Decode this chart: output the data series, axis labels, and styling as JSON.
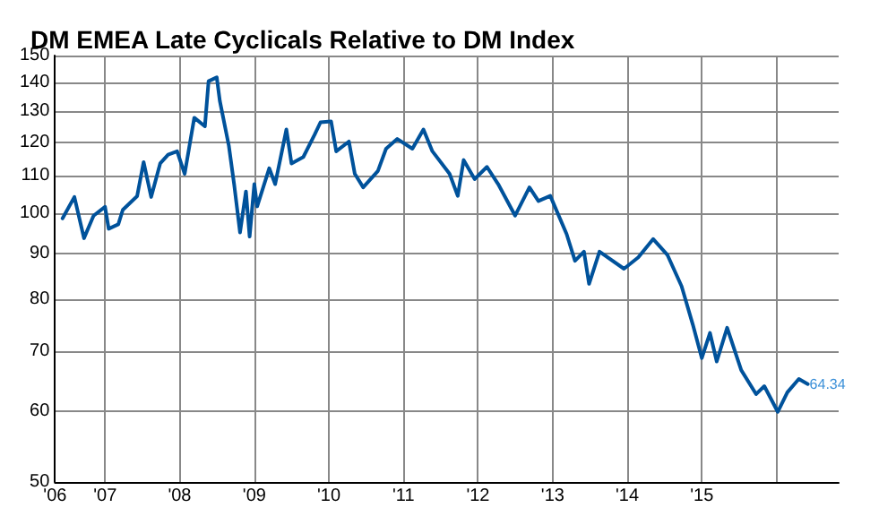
{
  "chart_data": {
    "type": "line",
    "title": "DM EMEA Late Cyclicals Relative to DM Index",
    "log": "y",
    "grid": true,
    "marker": "none",
    "line_style": "solid",
    "xlim": [
      "2006-05",
      "2016-11"
    ],
    "xticks": [
      {
        "value": "2006-05",
        "label": "'06"
      },
      {
        "value": "2007",
        "label": "'07"
      },
      {
        "value": "2008",
        "label": "'08"
      },
      {
        "value": "2009",
        "label": "'09"
      },
      {
        "value": "2010",
        "label": "'10"
      },
      {
        "value": "2011",
        "label": "'11"
      },
      {
        "value": "2012",
        "label": "'12"
      },
      {
        "value": "2013",
        "label": "'13"
      },
      {
        "value": "2014",
        "label": "'14"
      },
      {
        "value": "2015",
        "label": "'15"
      },
      {
        "value": "2016",
        "label": null
      }
    ],
    "ylim": [
      50,
      150
    ],
    "yticks": [
      50,
      60,
      70,
      80,
      90,
      100,
      110,
      120,
      130,
      140,
      150
    ],
    "series": [
      {
        "color": "#00529b",
        "x": [
          "2006-06-07",
          "2006-08-04",
          "2006-09-20",
          "2006-11-06",
          "2007-01-01",
          "2007-01-19",
          "2007-03-07",
          "2007-03-29",
          "2007-06-07",
          "2007-07-09",
          "2007-08-15",
          "2007-09-28",
          "2007-11-06",
          "2007-12-20",
          "2008-01-26",
          "2008-03-13",
          "2008-05-04",
          "2008-05-22",
          "2008-07-01",
          "2008-07-16",
          "2008-08-29",
          "2008-09-24",
          "2008-10-23",
          "2008-11-21",
          "2008-12-09",
          "2009-01-01",
          "2009-01-15",
          "2009-03-15",
          "2009-04-13",
          "2009-06-07",
          "2009-07-02",
          "2009-08-29",
          "2009-10-23",
          "2009-11-21",
          "2010-01-12",
          "2010-02-06",
          "2010-04-09",
          "2010-05-08",
          "2010-06-18",
          "2010-08-29",
          "2010-10-08",
          "2010-12-02",
          "2011-02-14",
          "2011-04-09",
          "2011-05-23",
          "2011-08-15",
          "2011-09-24",
          "2011-10-23",
          "2011-12-16",
          "2012-02-14",
          "2012-04-09",
          "2012-07-01",
          "2012-09-09",
          "2012-10-23",
          "2012-12-20",
          "2013-03-10",
          "2013-04-20",
          "2013-06-03",
          "2013-06-28",
          "2013-08-18",
          "2013-12-16",
          "2014-02-24",
          "2014-05-08",
          "2014-07-16",
          "2014-09-24",
          "2014-11-18",
          "2015-01-01",
          "2015-02-10",
          "2015-03-15",
          "2015-05-05",
          "2015-07-13",
          "2015-09-24",
          "2015-11-03",
          "2016-01-08",
          "2016-02-24",
          "2016-04-20",
          "2016-06-03"
        ],
        "values": [
          98.6,
          104.2,
          93.7,
          99.3,
          101.6,
          96.0,
          97.1,
          100.8,
          104.4,
          114.0,
          104.2,
          113.6,
          116.2,
          117.2,
          110.6,
          127.8,
          125.0,
          140.4,
          141.8,
          133.5,
          119.0,
          107.7,
          95.1,
          105.7,
          94.1,
          107.7,
          101.7,
          112.2,
          107.7,
          124.0,
          113.6,
          115.5,
          122.3,
          126.3,
          126.6,
          117.2,
          120.2,
          110.6,
          106.8,
          111.4,
          118.0,
          121.0,
          118.0,
          124.0,
          117.2,
          110.6,
          104.5,
          114.6,
          109.1,
          112.6,
          107.7,
          99.3,
          106.8,
          103.1,
          104.5,
          94.7,
          88.4,
          90.5,
          83.3,
          90.5,
          86.6,
          89.2,
          93.5,
          89.8,
          82.8,
          75.0,
          68.8,
          73.4,
          68.2,
          74.4,
          66.7,
          62.7,
          64.0,
          59.9,
          63.0,
          65.2,
          64.34
        ],
        "value_labels": [
          null,
          null,
          null,
          null,
          null,
          null,
          null,
          null,
          null,
          null,
          null,
          null,
          null,
          null,
          null,
          null,
          null,
          null,
          null,
          null,
          null,
          null,
          null,
          null,
          null,
          null,
          null,
          null,
          null,
          null,
          null,
          null,
          null,
          null,
          null,
          null,
          null,
          null,
          null,
          null,
          null,
          null,
          null,
          null,
          null,
          null,
          null,
          null,
          null,
          null,
          null,
          null,
          null,
          null,
          null,
          null,
          null,
          null,
          null,
          null,
          null,
          null,
          null,
          null,
          null,
          null,
          null,
          null,
          null,
          null,
          null,
          null,
          null,
          null,
          null,
          null,
          "64.34"
        ]
      }
    ]
  }
}
